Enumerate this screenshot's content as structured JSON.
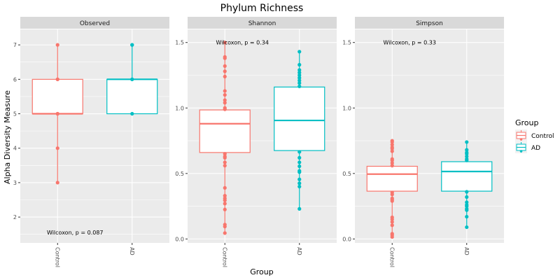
{
  "chart_data": {
    "type": "boxplot",
    "title": "Phylum Richness",
    "xlabel": "Group",
    "ylabel": "Alpha Diversity Measure",
    "categories": [
      "Control",
      "AD"
    ],
    "legend": {
      "title": "Group",
      "position": "right",
      "entries": [
        {
          "label": "Control",
          "color": "#F8766D"
        },
        {
          "label": "AD",
          "color": "#00BFC4"
        }
      ]
    },
    "colors": {
      "Control": "#F8766D",
      "AD": "#00BFC4",
      "panel_bg": "#EBEBEB",
      "strip_bg": "#D9D9D9",
      "grid": "#FFFFFF"
    },
    "panels": [
      {
        "name": "Observed",
        "ylim": [
          1.25,
          7.45
        ],
        "yticks": [
          2,
          3,
          4,
          5,
          6,
          7
        ],
        "ytick_labels": [
          "2",
          "3",
          "4",
          "5",
          "6",
          "7"
        ],
        "annotation": {
          "text": "Wilcoxon, p = 0.087",
          "y": 1.55
        },
        "groups": [
          {
            "name": "Control",
            "q1": 5,
            "median": 5,
            "q3": 6,
            "whisker_low": 3,
            "whisker_high": 7,
            "points": [
              7,
              6,
              6,
              5,
              5,
              4,
              3
            ]
          },
          {
            "name": "AD",
            "q1": 5,
            "median": 6,
            "q3": 6,
            "whisker_low": 5,
            "whisker_high": 7,
            "points": [
              7,
              7,
              6,
              6,
              5
            ]
          }
        ]
      },
      {
        "name": "Shannon",
        "ylim": [
          -0.03,
          1.6
        ],
        "yticks": [
          0.0,
          0.5,
          1.0,
          1.5
        ],
        "ytick_labels": [
          "0.0",
          "0.5",
          "1.0",
          "1.5"
        ],
        "annotation": {
          "text": "Wilcoxon, p = 0.34",
          "y": 1.5
        },
        "groups": [
          {
            "name": "Control",
            "q1": 0.66,
            "median": 0.88,
            "q3": 0.985,
            "whisker_low": 0.045,
            "whisker_high": 1.5,
            "points": [
              1.5,
              1.39,
              1.38,
              1.32,
              1.28,
              1.24,
              1.13,
              1.1,
              1.06,
              1.04,
              1.0,
              0.99,
              0.65,
              0.63,
              0.62,
              0.585,
              0.56,
              0.39,
              0.33,
              0.31,
              0.295,
              0.27,
              0.225,
              0.11,
              0.095,
              0.045
            ]
          },
          {
            "name": "AD",
            "q1": 0.675,
            "median": 0.905,
            "q3": 1.16,
            "whisker_low": 0.23,
            "whisker_high": 1.43,
            "points": [
              1.43,
              1.33,
              1.29,
              1.27,
              1.25,
              1.23,
              1.21,
              1.19,
              1.165,
              0.665,
              0.62,
              0.585,
              0.555,
              0.52,
              0.51,
              0.455,
              0.425,
              0.4,
              0.23
            ]
          }
        ]
      },
      {
        "name": "Simpson",
        "ylim": [
          -0.03,
          1.6
        ],
        "yticks": [
          0.0,
          0.5,
          1.0,
          1.5
        ],
        "ytick_labels": [
          "0.0",
          "0.5",
          "1.0",
          "1.5"
        ],
        "annotation": {
          "text": "Wilcoxon, p = 0.33",
          "y": 1.5
        },
        "groups": [
          {
            "name": "Control",
            "q1": 0.365,
            "median": 0.495,
            "q3": 0.555,
            "whisker_low": 0.015,
            "whisker_high": 0.75,
            "points": [
              0.75,
              0.74,
              0.72,
              0.7,
              0.69,
              0.67,
              0.61,
              0.6,
              0.58,
              0.56,
              0.355,
              0.34,
              0.31,
              0.3,
              0.29,
              0.165,
              0.15,
              0.13,
              0.105,
              0.04,
              0.03,
              0.015
            ]
          },
          {
            "name": "AD",
            "q1": 0.365,
            "median": 0.515,
            "q3": 0.59,
            "whisker_low": 0.09,
            "whisker_high": 0.74,
            "points": [
              0.74,
              0.68,
              0.66,
              0.65,
              0.63,
              0.61,
              0.6,
              0.36,
              0.32,
              0.28,
              0.26,
              0.25,
              0.23,
              0.22,
              0.17,
              0.09
            ]
          }
        ]
      }
    ]
  }
}
